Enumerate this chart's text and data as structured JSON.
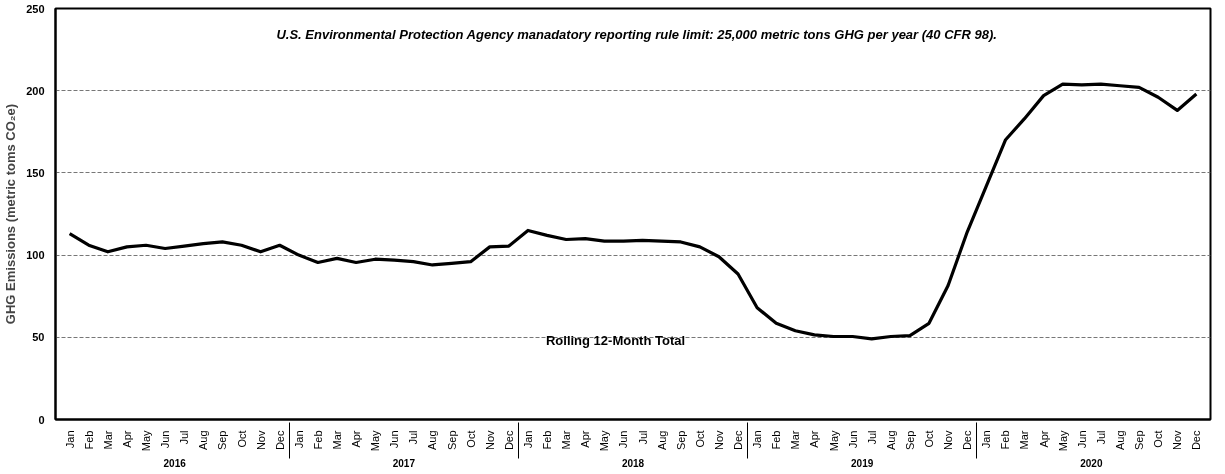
{
  "chart_data": {
    "type": "line",
    "title": "U.S. Environmental Protection Agency manadatory  reporting rule limit:  25,000 metric tons GHG per year (40 CFR 98).",
    "ylabel": "GHG Emissions (metric toms CO₂e)",
    "categories": [
      "Jan",
      "Feb",
      "Mar",
      "Apr",
      "May",
      "Jun",
      "Jul",
      "Aug",
      "Sep",
      "Oct",
      "Nov",
      "Dec",
      "Jan",
      "Feb",
      "Mar",
      "Apr",
      "May",
      "Jun",
      "Jul",
      "Aug",
      "Sep",
      "Oct",
      "Nov",
      "Dec",
      "Jan",
      "Feb",
      "Mar",
      "Apr",
      "May",
      "Jun",
      "Jul",
      "Aug",
      "Sep",
      "Oct",
      "Nov",
      "Dec",
      "Jan",
      "Feb",
      "Mar",
      "Apr",
      "May",
      "Jun",
      "Jul",
      "Aug",
      "Sep",
      "Oct",
      "Nov",
      "Dec",
      "Jan",
      "Feb",
      "Mar",
      "Apr",
      "May",
      "Jun",
      "Jul",
      "Aug",
      "Sep",
      "Oct",
      "Nov",
      "Dec"
    ],
    "series": [
      {
        "color": "#000000",
        "values": [
          113,
          106,
          102,
          105,
          106,
          104,
          105.5,
          107,
          108,
          106,
          102,
          106,
          100,
          95.5,
          98,
          95.5,
          97.5,
          97,
          96,
          94,
          95,
          96,
          105,
          105.5,
          115,
          112,
          109.5,
          110,
          108.5,
          108.5,
          109,
          108.5,
          108,
          105,
          99,
          88.5,
          68,
          58.5,
          54,
          51.5,
          50.5,
          50.5,
          49,
          50.5,
          51,
          58.5,
          81.5,
          114,
          142,
          170,
          183,
          197,
          204,
          203.5,
          204,
          203,
          202,
          196,
          188,
          198
        ]
      }
    ],
    "annotations": [
      "Rolling 12-Month Total",
      "2016",
      "2017",
      "2018",
      "2019",
      "2020"
    ],
    "ylim": [
      0,
      250
    ],
    "yticks": [
      0,
      50,
      100,
      150,
      200,
      250
    ],
    "grid": "y",
    "line_style": "solid",
    "marker": "none"
  }
}
